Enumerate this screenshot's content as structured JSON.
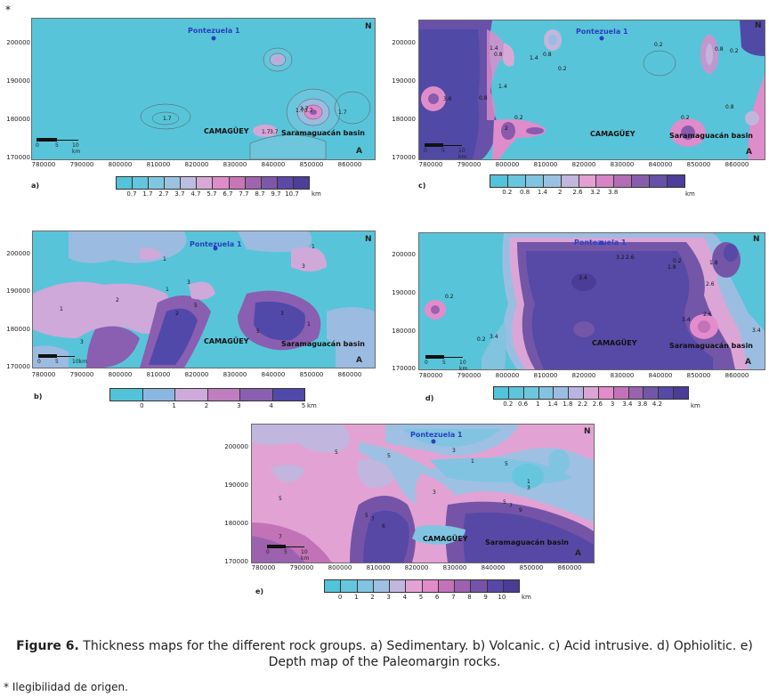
{
  "asterisk": "*",
  "panels": {
    "a": {
      "label": "a)",
      "y_ticks": [
        "200000",
        "190000",
        "180000",
        "170000"
      ],
      "x_ticks": [
        "780000",
        "790000",
        "800000",
        "810000",
        "820000",
        "830000",
        "840000",
        "850000",
        "860000"
      ],
      "well": "Pontezuela 1",
      "city": "CAMAGÜEY",
      "basin": "Saramaguacán basin",
      "north": "N",
      "corner": "A",
      "scale": {
        "t0": "0",
        "t1": "5",
        "t2": "10 km"
      },
      "contour_labels": [
        "1.7",
        "1.7",
        "3.7",
        "1.7",
        "1.7",
        "2.7",
        "3.7"
      ],
      "colorbar": {
        "ticks": [
          "0.7",
          "1.7",
          "2.7",
          "3.7",
          "4.7",
          "5.7",
          "6.7",
          "7.7",
          "8.7",
          "9.7",
          "10.7"
        ],
        "unit": "km",
        "colors": [
          "#52c3d8",
          "#63c6dc",
          "#7fc7e0",
          "#9cc2e2",
          "#bcbde0",
          "#d8a9d6",
          "#e08ccb",
          "#c775b7",
          "#9f64ad",
          "#7d58aa",
          "#5d48a6",
          "#4d3e98"
        ]
      }
    },
    "b": {
      "label": "b)",
      "y_ticks": [
        "200000",
        "190000",
        "180000",
        "170000"
      ],
      "x_ticks": [
        "780000",
        "790000",
        "800000",
        "810000",
        "820000",
        "830000",
        "840000",
        "850000",
        "860000"
      ],
      "well": "Pontezuela 1",
      "city": "CAMAGÜEY",
      "basin": "Saramaguacán basin",
      "north": "N",
      "corner": "A",
      "scale": {
        "t0": "0",
        "t1": "5",
        "t2": "10km"
      },
      "contour_labels": [
        "1",
        "1",
        "1",
        "2",
        "3",
        "3",
        "3",
        "5",
        "1",
        "5",
        "2",
        "3",
        "1"
      ],
      "colorbar": {
        "ticks": [
          "0",
          "1",
          "2",
          "3",
          "4",
          "5"
        ],
        "unit": "km",
        "colors": [
          "#52c3d8",
          "#8ab7e2",
          "#cfa9da",
          "#c07ec0",
          "#8a5eb0",
          "#5049a9"
        ]
      }
    },
    "c": {
      "label": "c)",
      "y_ticks": [
        "200000",
        "190000",
        "180000",
        "170000"
      ],
      "x_ticks": [
        "780000",
        "790000",
        "800000",
        "810000",
        "820000",
        "830000",
        "840000",
        "850000",
        "860000"
      ],
      "well": "Pontezuela 1",
      "city": "CAMAGÜEY",
      "basin": "Saramaguacán basin",
      "north": "N",
      "corner": "A",
      "scale": {
        "t0": "0",
        "t1": "5",
        "t2": "10 km"
      },
      "contour_labels": [
        "1.4",
        "0.8",
        "3.6",
        "1.4",
        "0.2",
        "0.8",
        "0.2",
        "2",
        "0.2",
        "0.8",
        "0.8",
        "0.2",
        "0.2",
        "1.4",
        "0.8"
      ],
      "colorbar": {
        "ticks": [
          "0.2",
          "0.8",
          "1.4",
          "2",
          "2.6",
          "3.2",
          "3.8"
        ],
        "unit": "km",
        "colors": [
          "#52c3d8",
          "#67c6dd",
          "#7fc5e0",
          "#9bc1e2",
          "#c2b6dd",
          "#e3a1d3",
          "#d684c4",
          "#b26db4",
          "#875dab",
          "#6552a7",
          "#4d3e98"
        ]
      }
    },
    "d": {
      "label": "d)",
      "y_ticks": [
        "200000",
        "190000",
        "180000",
        "170000"
      ],
      "x_ticks": [
        "780000",
        "790000",
        "800000",
        "810000",
        "820000",
        "830000",
        "840000",
        "850000",
        "860000"
      ],
      "well": "Pontezuela 1",
      "city": "CAMAGÜEY",
      "basin": "Saramaguacán basin",
      "north": "N",
      "corner": "A",
      "scale": {
        "t0": "0",
        "t1": "5",
        "t2": "10 km"
      },
      "contour_labels": [
        "0.2",
        "3.4",
        "3.2",
        "2.6",
        "0.2",
        "1.8",
        "1.8",
        "2.6",
        "3.4",
        "2.6",
        "3.4",
        "3.4",
        "0.2"
      ],
      "colorbar": {
        "ticks": [
          "0.2",
          "0.6",
          "1",
          "1.4",
          "1.8",
          "2.2",
          "2.6",
          "3",
          "3.4",
          "3.8",
          "4.2"
        ],
        "unit": "km",
        "colors": [
          "#52c3d8",
          "#5ec5da",
          "#6ec6dd",
          "#82c3e0",
          "#9cbde2",
          "#b8b5e0",
          "#dba6d6",
          "#e38ccc",
          "#c273b7",
          "#9963ae",
          "#7356a8",
          "#5749a6",
          "#4b3d96"
        ]
      }
    },
    "e": {
      "label": "e)",
      "y_ticks": [
        "200000",
        "190000",
        "180000",
        "170000"
      ],
      "x_ticks": [
        "780000",
        "790000",
        "800000",
        "810000",
        "820000",
        "830000",
        "840000",
        "850000",
        "860000"
      ],
      "well": "Pontezuela 1",
      "city": "CAMAGÜEY",
      "basin": "Saramaguacán basin",
      "north": "N",
      "corner": "A",
      "scale": {
        "t0": "0",
        "t1": "5",
        "t2": "10 km"
      },
      "contour_labels": [
        "5",
        "5",
        "3",
        "5",
        "1",
        "3",
        "5",
        "7",
        "7",
        "9",
        "5",
        "7",
        "6",
        "5",
        "3",
        "1"
      ],
      "colorbar": {
        "ticks": [
          "0",
          "1",
          "2",
          "3",
          "4",
          "5",
          "6",
          "7",
          "8",
          "9",
          "10"
        ],
        "unit": "km",
        "colors": [
          "#52c3d8",
          "#66c6dd",
          "#80c4e1",
          "#9ec0e2",
          "#c0b6de",
          "#e2a3d4",
          "#e08bca",
          "#c273b7",
          "#9c62ad",
          "#7554a8",
          "#5848a6",
          "#4a3c95"
        ]
      }
    }
  },
  "caption": {
    "bold": "Figure 6.",
    "text": " Thickness maps for the different rock groups. a) Sedimentary. b) Volcanic. c) Acid intrusive. d) Ophiolitic. e) Depth map of the Paleomargin rocks."
  },
  "footnote": "* Ilegibilidad de origen."
}
